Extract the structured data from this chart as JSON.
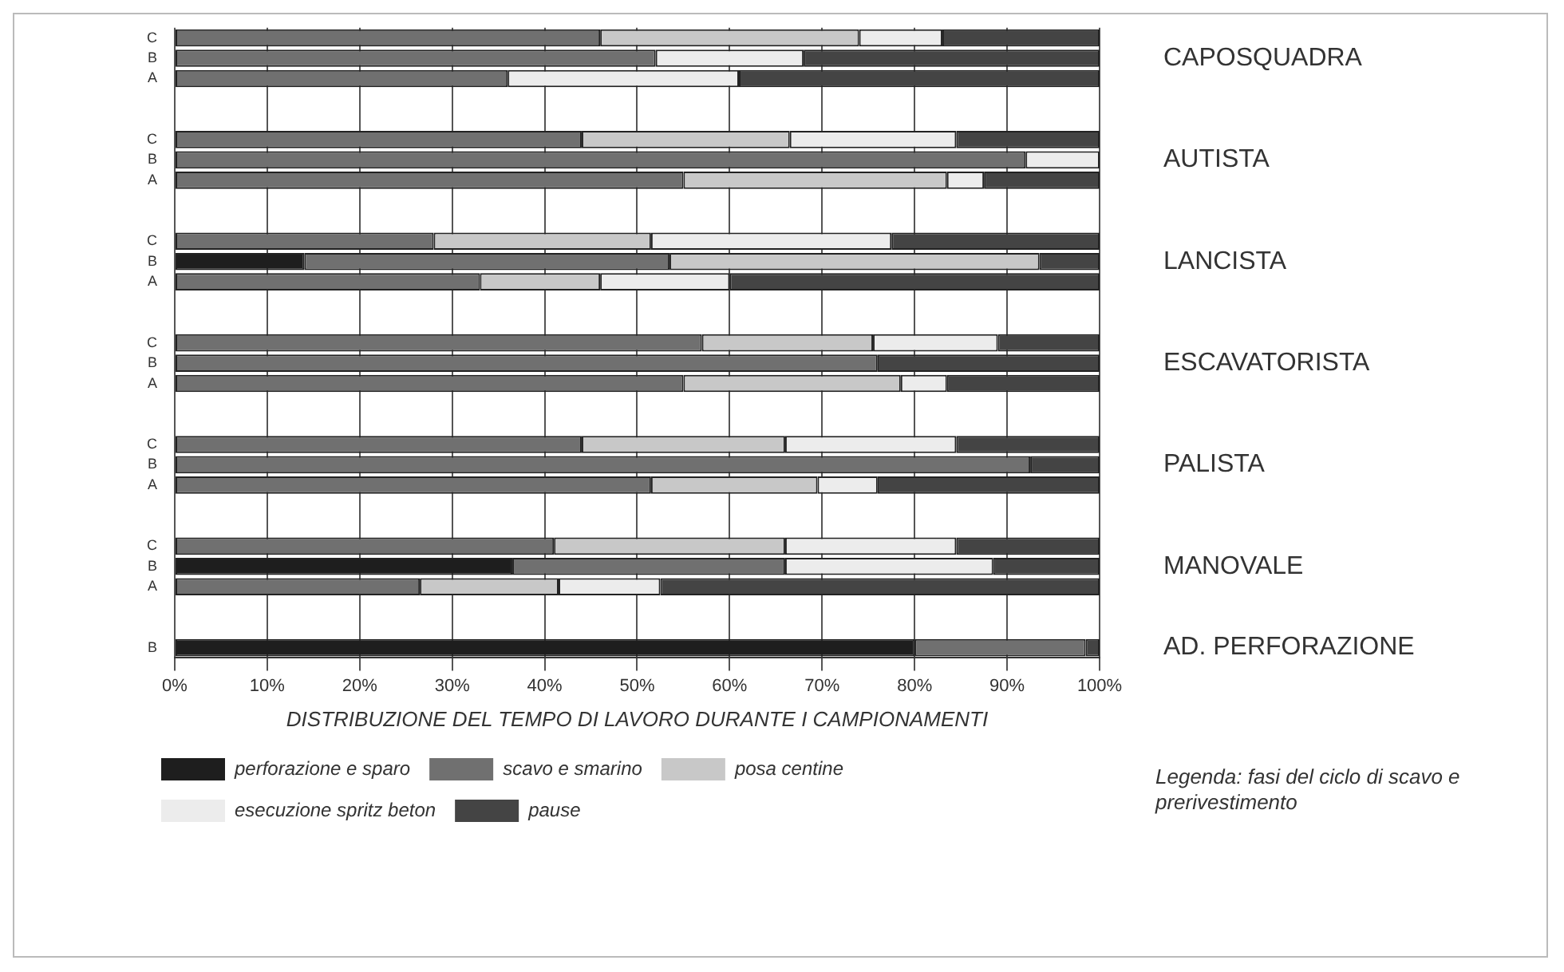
{
  "chart_data": {
    "type": "bar",
    "orientation": "horizontal",
    "stacked": true,
    "categories": [
      "C",
      "B",
      "A",
      null,
      null,
      "C",
      "B",
      "A",
      null,
      null,
      "C",
      "B",
      "A",
      null,
      null,
      "C",
      "B",
      "A",
      null,
      null,
      "C",
      "B",
      "A",
      null,
      null,
      "C",
      "B",
      "A",
      null,
      null,
      "B"
    ],
    "series": [
      {
        "name": "perforazione e sparo",
        "color": "#1e1e1e",
        "values": [
          0,
          0,
          0,
          null,
          null,
          0,
          0,
          0,
          null,
          null,
          0,
          14,
          0,
          null,
          null,
          0,
          0,
          0,
          null,
          null,
          0,
          0,
          0,
          null,
          null,
          0,
          36.5,
          0,
          null,
          null,
          80
        ]
      },
      {
        "name": "scavo e smarino",
        "color": "#707070",
        "values": [
          46,
          52,
          36,
          null,
          null,
          44,
          92,
          55,
          null,
          null,
          28,
          39.5,
          33,
          null,
          null,
          57,
          76,
          55,
          null,
          null,
          44,
          92.5,
          51.5,
          null,
          null,
          41,
          29.5,
          26.5,
          null,
          null,
          18.5
        ]
      },
      {
        "name": "posa centine",
        "color": "#c8c8c8",
        "values": [
          28,
          0,
          0,
          null,
          null,
          22.5,
          0,
          28.5,
          null,
          null,
          23.5,
          40,
          13,
          null,
          null,
          18.5,
          0,
          23.5,
          null,
          null,
          22,
          0,
          18,
          null,
          null,
          25,
          0,
          15,
          null,
          null,
          0
        ]
      },
      {
        "name": "esecuzione spritz beton",
        "color": "#ececec",
        "values": [
          9,
          16,
          25,
          null,
          null,
          18,
          8,
          4,
          null,
          null,
          26,
          0,
          14,
          null,
          null,
          13.5,
          0,
          5,
          null,
          null,
          18.5,
          0,
          6.5,
          null,
          null,
          18.5,
          22.5,
          11,
          null,
          null,
          0
        ]
      },
      {
        "name": "pause",
        "color": "#444444",
        "values": [
          17,
          32,
          39,
          null,
          null,
          15.5,
          0,
          12.5,
          null,
          null,
          22.5,
          6.5,
          40,
          null,
          null,
          11,
          24,
          16.5,
          null,
          null,
          15.5,
          7.5,
          24,
          null,
          null,
          15.5,
          11.5,
          47.5,
          null,
          null,
          1.5
        ]
      }
    ],
    "xlim": [
      0,
      100
    ],
    "xticks": [
      {
        "value": 0,
        "label": "0%"
      },
      {
        "value": 10,
        "label": "10%"
      },
      {
        "value": 20,
        "label": "20%"
      },
      {
        "value": 30,
        "label": "30%"
      },
      {
        "value": 40,
        "label": "40%"
      },
      {
        "value": 50,
        "label": "50%"
      },
      {
        "value": 60,
        "label": "60%"
      },
      {
        "value": 70,
        "label": "70%"
      },
      {
        "value": 80,
        "label": "80%"
      },
      {
        "value": 90,
        "label": "90%"
      },
      {
        "value": 100,
        "label": "100%"
      }
    ],
    "grid": "x",
    "xlabel": "DISTRIBUZIONE DEL TEMPO DI LAVORO DURANTE I CAMPIONAMENTI",
    "annotations": [
      "CAPOSQUADRA",
      "AUTISTA",
      "LANCISTA",
      "ESCAVATORISTA",
      "PALISTA",
      "MANOVALE",
      "AD. PERFORAZIONE"
    ],
    "legend": "bottom",
    "legend_title": "Legenda: fasi del ciclo di scavo e prerivestimento"
  }
}
